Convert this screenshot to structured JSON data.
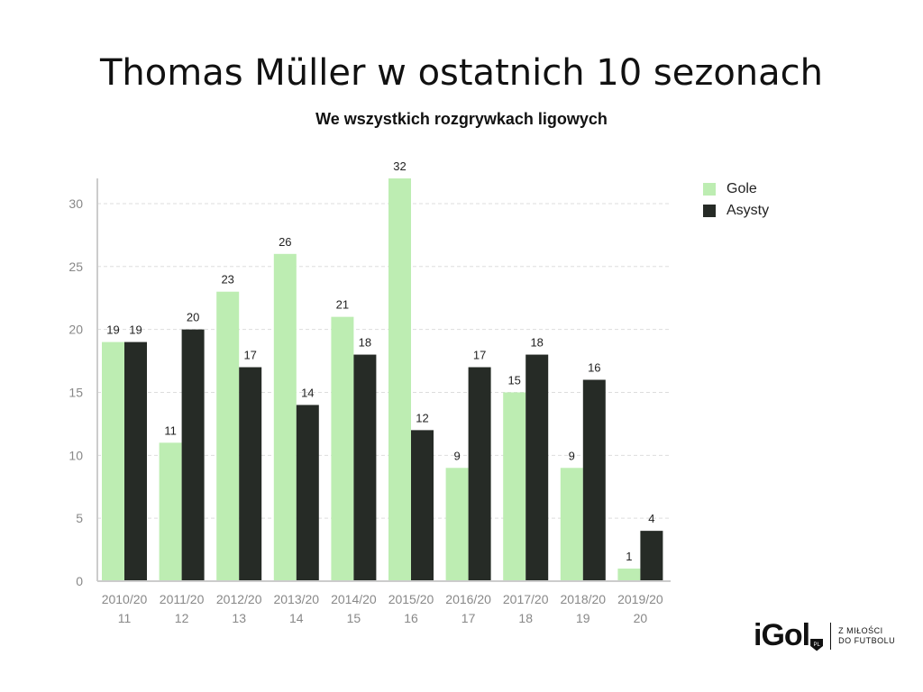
{
  "chart_data": {
    "type": "bar",
    "title": "Thomas Müller w ostatnich 10 sezonach",
    "subtitle": "We wszystkich rozgrywkach ligowych",
    "categories": [
      [
        "2010/20",
        "11"
      ],
      [
        "2011/20",
        "12"
      ],
      [
        "2012/20",
        "13"
      ],
      [
        "2013/20",
        "14"
      ],
      [
        "2014/20",
        "15"
      ],
      [
        "2015/20",
        "16"
      ],
      [
        "2016/20",
        "17"
      ],
      [
        "2017/20",
        "18"
      ],
      [
        "2018/20",
        "19"
      ],
      [
        "2019/20",
        "20"
      ]
    ],
    "series": [
      {
        "name": "Gole",
        "color": "#bdedb2",
        "values": [
          19,
          11,
          23,
          26,
          21,
          32,
          9,
          15,
          9,
          1
        ]
      },
      {
        "name": "Asysty",
        "color": "#262b26",
        "values": [
          19,
          20,
          17,
          14,
          18,
          12,
          17,
          18,
          16,
          4
        ]
      }
    ],
    "yticks": [
      0,
      5,
      10,
      15,
      20,
      25,
      30
    ],
    "ylim": [
      0,
      32
    ],
    "grid": true,
    "legend": "top-right"
  },
  "legend": {
    "items": [
      {
        "label": "Gole",
        "color": "#bdedb2"
      },
      {
        "label": "Asysty",
        "color": "#262b26"
      }
    ]
  },
  "logo": {
    "word": "iGol",
    "badge": "PL",
    "tag_line1": "Z MIŁOŚCI",
    "tag_line2": "DO FUTBOLU"
  }
}
